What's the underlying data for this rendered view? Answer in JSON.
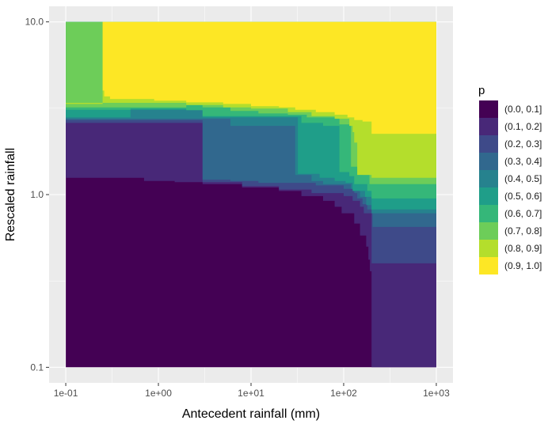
{
  "chart_data": {
    "type": "heatmap",
    "xlabel": "Antecedent rainfall (mm)",
    "ylabel": "Rescaled rainfall",
    "x_scale": "log10",
    "y_scale": "log10",
    "xlim": [
      0.1,
      1000
    ],
    "ylim": [
      0.1,
      10
    ],
    "x_ticks": [
      {
        "value": 0.1,
        "label": "1e-01"
      },
      {
        "value": 1,
        "label": "1e+00"
      },
      {
        "value": 10,
        "label": "1e+01"
      },
      {
        "value": 100,
        "label": "1e+02"
      },
      {
        "value": 1000,
        "label": "1e+03"
      }
    ],
    "y_ticks": [
      {
        "value": 0.1,
        "label": "0.1"
      },
      {
        "value": 1,
        "label": "1.0"
      },
      {
        "value": 10,
        "label": "10.0"
      }
    ],
    "grid": true,
    "legend_position": "right",
    "legend": {
      "title": "p",
      "entries": [
        {
          "label": "(0.0, 0.1]",
          "color": "#440154"
        },
        {
          "label": "(0.1, 0.2]",
          "color": "#482878"
        },
        {
          "label": "(0.2, 0.3]",
          "color": "#3E4A89"
        },
        {
          "label": "(0.3, 0.4]",
          "color": "#31688E"
        },
        {
          "label": "(0.4, 0.5]",
          "color": "#26828E"
        },
        {
          "label": "(0.5, 0.6]",
          "color": "#1F9E89"
        },
        {
          "label": "(0.6, 0.7]",
          "color": "#35B779"
        },
        {
          "label": "(0.7, 0.8]",
          "color": "#6DCD59"
        },
        {
          "label": "(0.8, 0.9]",
          "color": "#B4DE2C"
        },
        {
          "label": "(0.9, 1.0]",
          "color": "#FDE725"
        }
      ]
    },
    "regions": [
      {
        "class": 0,
        "x_range": [
          0.1,
          1000
        ],
        "y_range": [
          0.1,
          10
        ]
      },
      {
        "class": 1,
        "x_range": [
          0.1,
          1000
        ],
        "y_range": [
          0.1,
          10
        ]
      },
      {
        "class": 2,
        "x_range": [
          0.1,
          1000
        ],
        "y_range": [
          0.1,
          10
        ]
      },
      {
        "class": 3,
        "x_range": [
          0.1,
          1000
        ],
        "y_range": [
          0.1,
          10
        ]
      },
      {
        "class": 4,
        "x_range": [
          0.1,
          1000
        ],
        "y_range": [
          0.1,
          10
        ]
      },
      {
        "class": 5,
        "x_range": [
          0.1,
          1000
        ],
        "y_range": [
          0.1,
          10
        ]
      },
      {
        "class": 6,
        "x_range": [
          0.1,
          1000
        ],
        "y_range": [
          0.1,
          10
        ]
      },
      {
        "class": 7,
        "x_range": [
          0.1,
          1000
        ],
        "y_range": [
          0.1,
          10
        ]
      },
      {
        "class": 8,
        "x_range": [
          0.1,
          1000
        ],
        "y_range": [
          0.1,
          10
        ]
      },
      {
        "class": 9,
        "x_range": [
          0.1,
          1000
        ],
        "y_range": [
          0.1,
          10
        ]
      }
    ]
  }
}
